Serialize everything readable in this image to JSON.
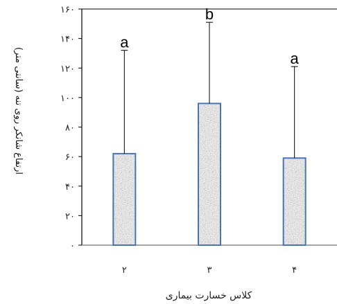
{
  "chart_data": {
    "type": "bar",
    "categories": [
      "۲",
      "۳",
      "۴"
    ],
    "values": [
      62,
      96,
      59
    ],
    "errors": [
      70,
      55,
      62
    ],
    "significance_letters": [
      "a",
      "b",
      "a"
    ],
    "xlabel": "کلاس خسارت بیماری",
    "ylabel": "ارتفاع شانکر روی تنه (سانتی متر)",
    "ylim": [
      0,
      160
    ],
    "y_ticks": [
      0,
      20,
      40,
      60,
      80,
      100,
      120,
      140,
      160
    ],
    "y_tick_labels": [
      "۰",
      "۲۰",
      "۴۰",
      "۶۰",
      "۸۰",
      "۱۰۰",
      "۱۲۰",
      "۱۴۰",
      "۱۶۰"
    ],
    "bar_fill": "#8f8f8f",
    "bar_edge": "#4a73b5",
    "grid": false
  }
}
